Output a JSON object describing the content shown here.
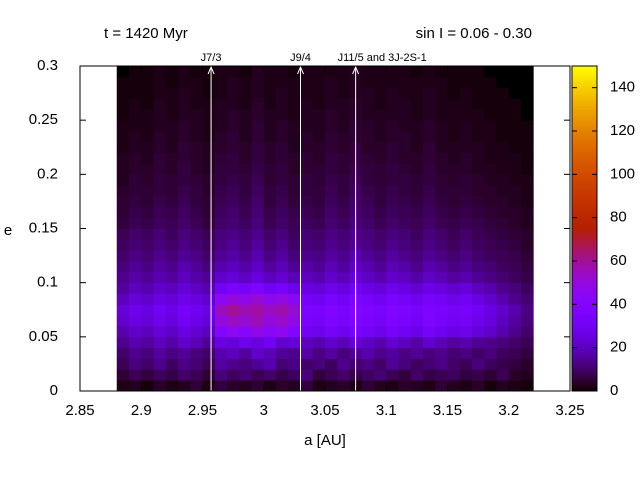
{
  "chart_data": {
    "type": "heatmap",
    "title": "t = 1420 Myr",
    "subtitle": "sin I = 0.06 - 0.30",
    "xlabel": "a [AU]",
    "ylabel": "e",
    "xlim": [
      2.85,
      3.25
    ],
    "xticks": [
      2.85,
      2.9,
      2.95,
      3,
      3.05,
      3.1,
      3.15,
      3.2,
      3.25
    ],
    "ylim": [
      0,
      0.3
    ],
    "yticks": [
      0,
      0.05,
      0.1,
      0.15,
      0.2,
      0.25,
      0.3
    ],
    "zlim": [
      0,
      150
    ],
    "zticks": [
      0,
      20,
      40,
      60,
      80,
      100,
      120,
      140
    ],
    "palette": "gnuplot",
    "annotations": [
      {
        "label": "J7/3",
        "x": 2.957
      },
      {
        "label": "J9/4",
        "x": 3.03
      },
      {
        "label": "J11/5 and 3J-2S-1",
        "x": 3.075
      }
    ],
    "xbins": [
      2.88,
      2.89,
      2.9,
      2.91,
      2.92,
      2.93,
      2.94,
      2.95,
      2.96,
      2.97,
      2.98,
      2.99,
      3,
      3.01,
      3.02,
      3.03,
      3.04,
      3.05,
      3.06,
      3.07,
      3.08,
      3.09,
      3.1,
      3.11,
      3.12,
      3.13,
      3.14,
      3.15,
      3.16,
      3.17,
      3.18,
      3.19,
      3.2,
      3.21,
      3.22
    ],
    "ybins": [
      0,
      0.01,
      0.02,
      0.03,
      0.04,
      0.05,
      0.06,
      0.07,
      0.08,
      0.09,
      0.1,
      0.11,
      0.12,
      0.13,
      0.14,
      0.15,
      0.16,
      0.17,
      0.18,
      0.19,
      0.2,
      0.21,
      0.22,
      0.23,
      0.24,
      0.25,
      0.26,
      0.27,
      0.28,
      0.29,
      0.3
    ],
    "z": [
      [
        2,
        3,
        1,
        4,
        2,
        3,
        5,
        2,
        6,
        4,
        3,
        5,
        2,
        4,
        3,
        6,
        2,
        3,
        4,
        2,
        5,
        3,
        2,
        4,
        3,
        2,
        5,
        3,
        2,
        4,
        1,
        3,
        2,
        1
      ],
      [
        5,
        8,
        6,
        9,
        7,
        10,
        8,
        5,
        12,
        9,
        11,
        8,
        10,
        7,
        9,
        12,
        6,
        8,
        10,
        7,
        9,
        11,
        8,
        6,
        10,
        7,
        8,
        9,
        6,
        7,
        5,
        8,
        4,
        3
      ],
      [
        8,
        12,
        10,
        14,
        9,
        13,
        11,
        8,
        16,
        14,
        12,
        15,
        18,
        11,
        13,
        10,
        12,
        9,
        14,
        11,
        13,
        10,
        15,
        12,
        9,
        11,
        13,
        10,
        8,
        12,
        9,
        7,
        6,
        4
      ],
      [
        10,
        14,
        12,
        16,
        13,
        15,
        12,
        10,
        18,
        20,
        16,
        22,
        19,
        15,
        14,
        17,
        13,
        16,
        12,
        15,
        18,
        14,
        16,
        13,
        15,
        12,
        14,
        11,
        13,
        10,
        12,
        9,
        8,
        6
      ],
      [
        14,
        18,
        16,
        20,
        17,
        22,
        19,
        15,
        26,
        24,
        28,
        25,
        30,
        22,
        24,
        20,
        18,
        22,
        19,
        24,
        21,
        18,
        23,
        20,
        17,
        22,
        19,
        16,
        18,
        15,
        14,
        12,
        10,
        8
      ],
      [
        18,
        22,
        20,
        24,
        21,
        26,
        23,
        20,
        40,
        45,
        42,
        48,
        44,
        46,
        40,
        30,
        28,
        32,
        29,
        34,
        31,
        28,
        33,
        30,
        27,
        32,
        29,
        26,
        28,
        24,
        22,
        18,
        14,
        10
      ],
      [
        22,
        26,
        24,
        28,
        25,
        30,
        27,
        24,
        50,
        54,
        52,
        56,
        50,
        53,
        48,
        34,
        32,
        36,
        33,
        38,
        35,
        32,
        37,
        34,
        31,
        36,
        33,
        30,
        32,
        28,
        25,
        20,
        16,
        12
      ],
      [
        24,
        28,
        26,
        30,
        27,
        32,
        29,
        26,
        55,
        60,
        56,
        58,
        54,
        57,
        52,
        36,
        35,
        38,
        34,
        40,
        37,
        34,
        38,
        36,
        33,
        37,
        35,
        32,
        33,
        30,
        26,
        22,
        18,
        13
      ],
      [
        20,
        24,
        22,
        26,
        24,
        28,
        25,
        22,
        45,
        50,
        48,
        52,
        46,
        49,
        44,
        32,
        30,
        34,
        31,
        36,
        33,
        30,
        34,
        32,
        29,
        33,
        31,
        28,
        30,
        26,
        22,
        18,
        14,
        11
      ],
      [
        16,
        20,
        18,
        22,
        20,
        24,
        21,
        18,
        30,
        34,
        32,
        36,
        30,
        33,
        28,
        26,
        24,
        28,
        25,
        30,
        27,
        24,
        28,
        26,
        23,
        27,
        25,
        22,
        24,
        20,
        18,
        14,
        12,
        9
      ],
      [
        14,
        17,
        15,
        18,
        16,
        20,
        17,
        15,
        22,
        24,
        21,
        25,
        20,
        23,
        19,
        20,
        18,
        22,
        19,
        24,
        21,
        18,
        22,
        20,
        17,
        21,
        19,
        16,
        18,
        15,
        13,
        11,
        9,
        7
      ],
      [
        12,
        15,
        13,
        16,
        14,
        18,
        15,
        12,
        18,
        20,
        17,
        21,
        16,
        19,
        15,
        17,
        15,
        19,
        16,
        21,
        18,
        15,
        19,
        17,
        14,
        18,
        16,
        13,
        15,
        12,
        11,
        9,
        8,
        6
      ],
      [
        10,
        13,
        11,
        14,
        12,
        15,
        13,
        10,
        15,
        17,
        14,
        18,
        13,
        16,
        12,
        14,
        13,
        16,
        14,
        18,
        15,
        13,
        16,
        14,
        12,
        15,
        13,
        11,
        13,
        10,
        9,
        8,
        7,
        5
      ],
      [
        9,
        11,
        10,
        12,
        10,
        13,
        11,
        9,
        13,
        15,
        12,
        16,
        11,
        14,
        10,
        12,
        11,
        14,
        12,
        15,
        13,
        11,
        14,
        12,
        10,
        13,
        11,
        9,
        11,
        9,
        8,
        7,
        6,
        4
      ],
      [
        8,
        10,
        9,
        11,
        9,
        12,
        10,
        8,
        12,
        13,
        11,
        14,
        10,
        12,
        9,
        11,
        10,
        13,
        11,
        14,
        12,
        10,
        12,
        11,
        9,
        12,
        10,
        8,
        10,
        8,
        7,
        6,
        5,
        4
      ],
      [
        6,
        8,
        7,
        9,
        8,
        10,
        8,
        6,
        10,
        11,
        9,
        12,
        8,
        10,
        8,
        9,
        8,
        11,
        9,
        12,
        10,
        8,
        10,
        9,
        8,
        10,
        8,
        7,
        8,
        7,
        6,
        5,
        4,
        3
      ],
      [
        5,
        7,
        6,
        8,
        7,
        9,
        7,
        5,
        9,
        10,
        8,
        11,
        7,
        9,
        7,
        8,
        7,
        10,
        8,
        11,
        9,
        7,
        9,
        8,
        7,
        9,
        7,
        6,
        7,
        6,
        5,
        4,
        4,
        3
      ],
      [
        5,
        6,
        5,
        7,
        6,
        8,
        6,
        5,
        8,
        9,
        7,
        10,
        6,
        8,
        6,
        7,
        6,
        9,
        7,
        10,
        8,
        6,
        8,
        7,
        6,
        8,
        6,
        5,
        6,
        5,
        4,
        4,
        3,
        2
      ],
      [
        4,
        5,
        5,
        6,
        5,
        7,
        6,
        4,
        7,
        8,
        6,
        9,
        6,
        7,
        5,
        6,
        6,
        8,
        6,
        9,
        7,
        6,
        7,
        6,
        5,
        7,
        5,
        5,
        5,
        4,
        4,
        3,
        3,
        2
      ],
      [
        3,
        5,
        4,
        6,
        5,
        6,
        5,
        4,
        6,
        7,
        6,
        8,
        5,
        6,
        5,
        6,
        5,
        7,
        6,
        8,
        6,
        5,
        6,
        6,
        5,
        6,
        5,
        4,
        5,
        4,
        3,
        3,
        2,
        2
      ],
      [
        3,
        4,
        4,
        5,
        4,
        6,
        4,
        3,
        6,
        6,
        5,
        7,
        5,
        6,
        4,
        5,
        5,
        6,
        5,
        7,
        6,
        5,
        6,
        5,
        4,
        6,
        4,
        4,
        4,
        3,
        3,
        2,
        2,
        1
      ],
      [
        3,
        4,
        3,
        5,
        4,
        5,
        4,
        3,
        5,
        6,
        4,
        6,
        4,
        5,
        4,
        5,
        4,
        6,
        5,
        6,
        5,
        4,
        5,
        4,
        4,
        5,
        4,
        3,
        4,
        3,
        2,
        2,
        2,
        1
      ],
      [
        2,
        3,
        3,
        4,
        3,
        5,
        4,
        3,
        4,
        5,
        4,
        6,
        4,
        5,
        3,
        4,
        4,
        5,
        4,
        6,
        4,
        4,
        5,
        4,
        3,
        5,
        3,
        3,
        3,
        3,
        2,
        2,
        1,
        1
      ],
      [
        2,
        3,
        2,
        4,
        3,
        4,
        3,
        2,
        4,
        5,
        3,
        5,
        3,
        4,
        3,
        4,
        3,
        5,
        4,
        5,
        4,
        3,
        4,
        4,
        3,
        4,
        3,
        2,
        3,
        2,
        2,
        1,
        1,
        1
      ],
      [
        2,
        2,
        2,
        3,
        3,
        4,
        3,
        2,
        3,
        4,
        3,
        5,
        3,
        4,
        3,
        3,
        3,
        4,
        3,
        5,
        4,
        3,
        4,
        3,
        3,
        4,
        3,
        2,
        3,
        2,
        2,
        1,
        1,
        1
      ],
      [
        1,
        2,
        2,
        3,
        2,
        3,
        3,
        2,
        3,
        4,
        3,
        4,
        3,
        3,
        2,
        3,
        3,
        4,
        3,
        4,
        3,
        3,
        3,
        3,
        2,
        3,
        2,
        2,
        2,
        2,
        1,
        1,
        1,
        0
      ],
      [
        1,
        2,
        1,
        3,
        2,
        3,
        2,
        2,
        3,
        3,
        2,
        4,
        2,
        3,
        2,
        3,
        2,
        3,
        3,
        4,
        3,
        2,
        3,
        3,
        2,
        3,
        2,
        2,
        2,
        1,
        1,
        1,
        1,
        0
      ],
      [
        1,
        1,
        1,
        2,
        2,
        3,
        2,
        1,
        2,
        3,
        2,
        3,
        2,
        3,
        2,
        2,
        2,
        3,
        2,
        3,
        3,
        2,
        3,
        2,
        2,
        3,
        2,
        1,
        2,
        1,
        1,
        1,
        0,
        0
      ],
      [
        1,
        1,
        1,
        2,
        1,
        2,
        2,
        1,
        2,
        3,
        2,
        3,
        2,
        2,
        2,
        2,
        2,
        3,
        2,
        3,
        2,
        2,
        2,
        2,
        2,
        2,
        2,
        1,
        1,
        1,
        1,
        0,
        0,
        0
      ],
      [
        0,
        1,
        1,
        2,
        1,
        2,
        1,
        1,
        2,
        2,
        1,
        3,
        2,
        2,
        1,
        2,
        2,
        2,
        2,
        3,
        2,
        2,
        2,
        2,
        1,
        2,
        1,
        1,
        1,
        1,
        0,
        0,
        0,
        0
      ]
    ]
  }
}
